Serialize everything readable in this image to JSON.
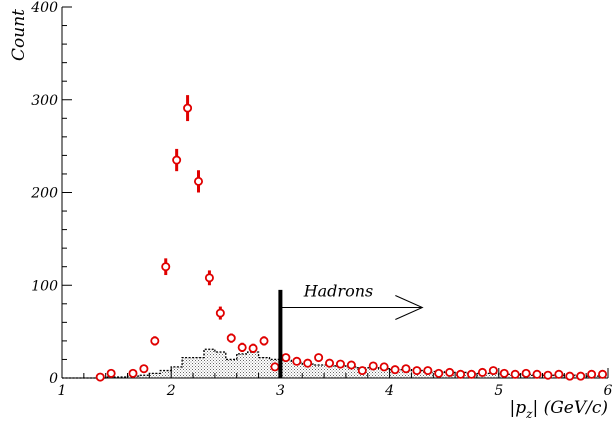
{
  "chart_data": {
    "type": "scatter",
    "title": "",
    "xlabel": "|p_z| (GeV/c)",
    "ylabel": "Count",
    "xlim": [
      1,
      6
    ],
    "ylim": [
      0,
      400
    ],
    "x_ticks": [
      1,
      2,
      3,
      4,
      5,
      6
    ],
    "y_ticks": [
      0,
      100,
      200,
      300,
      400
    ],
    "grid": false,
    "legend": "none",
    "series": [
      {
        "kind": "points-with-errors",
        "color": "#e00000",
        "x": [
          1.35,
          1.45,
          1.65,
          1.75,
          1.85,
          1.95,
          2.05,
          2.15,
          2.25,
          2.35,
          2.45,
          2.55,
          2.65,
          2.75,
          2.85,
          2.95,
          3.05,
          3.15,
          3.25,
          3.35,
          3.45,
          3.55,
          3.65,
          3.75,
          3.85,
          3.95,
          4.05,
          4.15,
          4.25,
          4.35,
          4.45,
          4.55,
          4.65,
          4.75,
          4.85,
          4.95,
          5.05,
          5.15,
          5.25,
          5.35,
          5.45,
          5.55,
          5.65,
          5.75,
          5.85,
          5.95
        ],
        "y": [
          1,
          5,
          5,
          10,
          40,
          120,
          235,
          291,
          212,
          108,
          70,
          43,
          33,
          32,
          40,
          12,
          22,
          18,
          16,
          22,
          16,
          15,
          14,
          8,
          13,
          12,
          9,
          10,
          8,
          8,
          5,
          6,
          4,
          4,
          6,
          8,
          5,
          4,
          5,
          4,
          3,
          4,
          2,
          2,
          4,
          4
        ],
        "err": [
          1,
          2,
          2,
          3,
          5,
          9,
          12,
          14,
          12,
          8,
          7,
          5,
          5,
          5,
          5,
          3,
          4,
          4,
          3,
          4,
          3,
          3,
          3,
          2,
          3,
          3,
          2,
          2,
          2,
          2,
          2,
          2,
          2,
          2,
          2,
          2,
          2,
          2,
          2,
          2,
          2,
          2,
          1,
          1,
          2,
          2
        ]
      },
      {
        "kind": "histogram",
        "color": "#000000",
        "fill": "hatched-gray",
        "bin_width": 0.1,
        "x": [
          1.05,
          1.15,
          1.25,
          1.35,
          1.45,
          1.55,
          1.65,
          1.75,
          1.85,
          1.95,
          2.05,
          2.15,
          2.25,
          2.35,
          2.45,
          2.55,
          2.65,
          2.75,
          2.85,
          2.95,
          3.05,
          3.15,
          3.25,
          3.35,
          3.45,
          3.55,
          3.65,
          3.75,
          3.85,
          3.95,
          4.05,
          4.15,
          4.25,
          4.35,
          4.45,
          4.55,
          4.65,
          4.75,
          4.85,
          4.95,
          5.05,
          5.15,
          5.25,
          5.35,
          5.45,
          5.55,
          5.65,
          5.75,
          5.85,
          5.95
        ],
        "y": [
          0,
          0,
          0,
          0,
          1,
          1,
          2,
          3,
          5,
          8,
          12,
          22,
          22,
          31,
          28,
          20,
          26,
          28,
          22,
          20,
          19,
          17,
          15,
          14,
          14,
          13,
          12,
          11,
          11,
          10,
          9,
          9,
          8,
          7,
          7,
          6,
          6,
          5,
          5,
          5,
          4,
          4,
          4,
          3,
          3,
          3,
          3,
          2,
          2,
          2
        ]
      }
    ],
    "annotations": [
      {
        "text": "Hadrons",
        "x": 3.85,
        "y": 88
      },
      {
        "type": "cut-line",
        "x": 3.0,
        "y_from": 0,
        "y_to": 95
      },
      {
        "type": "arrow",
        "x_from": 3.0,
        "x_to": 4.3,
        "y": 76
      }
    ]
  }
}
